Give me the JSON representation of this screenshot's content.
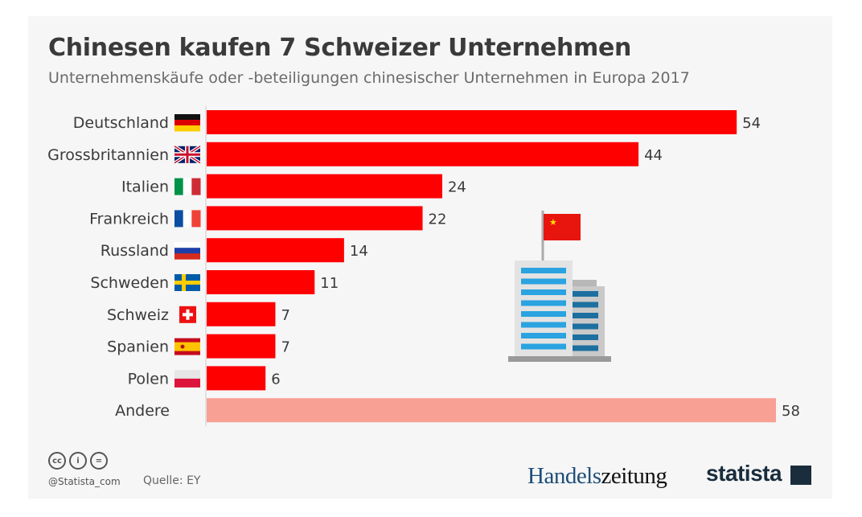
{
  "title": "Chinesen kaufen 7 Schweizer Unternehmen",
  "subtitle": "Unternehmenskäufe oder -beteiligungen chinesischer Unternehmen in Europa 2017",
  "footer": {
    "handle": "@Statista_com",
    "source": "Quelle: EY",
    "cc_icons": [
      "cc",
      "by",
      "nd"
    ],
    "partner_logo": "Handelszeitung",
    "partner_logo_parts": [
      "Handels",
      "zeitung"
    ],
    "brand_logo": "statista"
  },
  "colors": {
    "bar": "#ff0000",
    "bar_other": "#f9a094",
    "background": "#f6f6f6"
  },
  "illustration": "china-flag-office-building-icon",
  "chart_data": {
    "type": "bar",
    "orientation": "horizontal",
    "grid": false,
    "categories": [
      "Deutschland",
      "Grossbritannien",
      "Italien",
      "Frankreich",
      "Russland",
      "Schweden",
      "Schweiz",
      "Spanien",
      "Polen",
      "Andere"
    ],
    "flags": [
      "de",
      "gb",
      "it",
      "fr",
      "ru",
      "se",
      "ch",
      "es",
      "pl",
      ""
    ],
    "values": [
      54,
      44,
      24,
      22,
      14,
      11,
      7,
      7,
      6,
      58
    ],
    "xlim": [
      0,
      58
    ]
  }
}
